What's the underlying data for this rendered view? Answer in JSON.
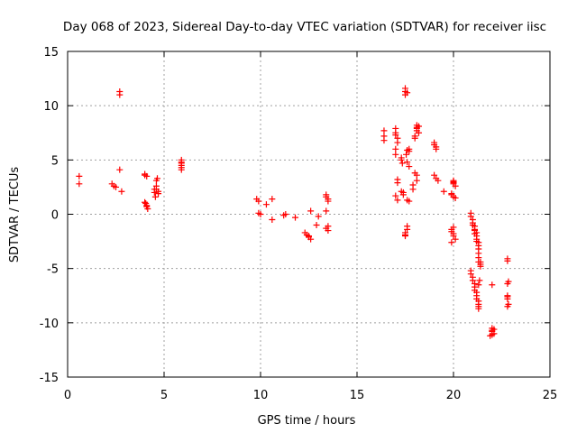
{
  "chart_data": {
    "type": "scatter",
    "title": "Day 068 of 2023, Sidereal Day-to-day VTEC variation (SDTVAR) for receiver iisc",
    "xlabel": "GPS time / hours",
    "ylabel": "SDTVAR / TECUs",
    "xlim": [
      0,
      25
    ],
    "ylim": [
      -15,
      15
    ],
    "x_ticks": [
      "0",
      "5",
      "10",
      "15",
      "20",
      "25"
    ],
    "y_ticks": [
      "-15",
      "-10",
      "-5",
      "0",
      "5",
      "10",
      "15"
    ],
    "x_tick_values": [
      0,
      5,
      10,
      15,
      20,
      25
    ],
    "y_tick_values": [
      -15,
      -10,
      -5,
      0,
      5,
      10,
      15
    ],
    "grid": true,
    "marker": "+",
    "colors": {
      "points": "#ff0000",
      "grid": "#a0a0a0",
      "axes": "#000000"
    },
    "series": [
      {
        "name": "SDTVAR",
        "x": [
          0.6,
          0.6,
          2.3,
          2.4,
          2.5,
          2.7,
          2.7,
          2.7,
          2.8,
          4.0,
          4.0,
          4.1,
          4.0,
          4.05,
          4.1,
          4.1,
          4.15,
          4.5,
          4.5,
          4.55,
          4.6,
          4.6,
          4.65,
          4.6,
          4.7,
          4.7,
          5.9,
          5.9,
          5.9,
          5.9,
          5.9,
          5.9,
          9.8,
          9.9,
          9.9,
          10.0,
          10.3,
          10.6,
          10.6,
          11.2,
          11.3,
          11.8,
          12.3,
          12.4,
          12.5,
          12.6,
          12.5,
          12.6,
          12.9,
          13.0,
          13.4,
          13.4,
          13.5,
          13.5,
          13.4,
          13.5,
          13.4,
          13.5,
          16.4,
          16.4,
          16.4,
          17.0,
          17.0,
          17.0,
          17.1,
          17.1,
          17.0,
          17.0,
          17.1,
          17.1,
          17.0,
          17.1,
          17.3,
          17.3,
          17.35,
          17.3,
          17.4,
          17.4,
          17.5,
          17.5,
          17.5,
          17.6,
          17.6,
          17.55,
          17.6,
          17.7,
          17.7,
          17.7,
          17.6,
          17.7,
          17.6,
          17.6,
          17.5,
          17.5,
          17.5,
          18.0,
          18.0,
          18.1,
          18.1,
          18.1,
          18.1,
          18.2,
          18.2,
          18.0,
          17.9,
          17.9,
          18.1,
          18.1,
          19.0,
          19.0,
          19.1,
          19.1,
          19.0,
          19.1,
          19.2,
          19.5,
          20.0,
          20.0,
          20.1,
          19.9,
          20.0,
          19.9,
          19.9,
          20.0,
          20.0,
          20.1,
          19.9,
          19.9,
          20.0,
          20.0,
          20.1,
          20.0,
          20.9,
          20.9,
          21.0,
          21.0,
          21.1,
          21.1,
          21.2,
          21.2,
          21.2,
          21.3,
          21.3,
          21.3,
          21.3,
          21.3,
          21.3,
          20.9,
          20.9,
          21.0,
          21.0,
          21.1,
          21.1,
          21.1,
          21.2,
          21.2,
          21.2,
          21.3,
          21.3,
          21.3,
          21.3,
          21.4,
          21.4,
          21.4,
          21.35,
          21.3,
          21.0,
          21.1,
          21.2,
          21.1,
          22.0,
          22.0,
          22.1,
          21.9,
          22.0,
          22.0,
          22.1,
          22.0,
          22.8,
          22.8,
          22.85,
          22.8,
          22.8,
          22.8,
          22.85,
          22.8,
          22.8
        ],
        "y": [
          3.5,
          2.8,
          2.8,
          2.6,
          2.5,
          11.3,
          11.0,
          4.1,
          2.1,
          3.7,
          3.6,
          3.5,
          1.1,
          1.0,
          0.8,
          0.7,
          0.5,
          2.3,
          2.0,
          1.6,
          2.3,
          2.6,
          3.3,
          3.1,
          2.1,
          1.9,
          5.0,
          4.7,
          4.5,
          4.3,
          4.1,
          4.8,
          1.4,
          1.2,
          0.1,
          0.0,
          0.9,
          1.4,
          -0.5,
          -0.1,
          0.0,
          -0.3,
          -1.7,
          -1.9,
          -2.1,
          -2.3,
          -2.0,
          0.3,
          -1.0,
          -0.2,
          1.8,
          1.6,
          1.4,
          1.2,
          0.3,
          -1.1,
          -1.3,
          -1.5,
          7.7,
          7.2,
          6.8,
          7.9,
          7.5,
          7.3,
          7.0,
          6.6,
          6.0,
          5.5,
          3.2,
          2.9,
          1.7,
          1.3,
          5.2,
          5.0,
          4.7,
          2.1,
          2.0,
          1.8,
          11.6,
          11.3,
          11.0,
          11.2,
          5.9,
          5.5,
          4.8,
          4.4,
          6.0,
          5.8,
          1.3,
          1.2,
          -1.1,
          -1.4,
          -1.7,
          -1.9,
          -2.0,
          7.2,
          7.0,
          7.7,
          8.0,
          8.2,
          7.9,
          8.1,
          7.5,
          3.8,
          2.7,
          2.3,
          3.1,
          3.6,
          6.6,
          6.4,
          6.2,
          6.0,
          3.6,
          3.3,
          3.1,
          2.1,
          3.0,
          2.8,
          2.6,
          1.9,
          1.6,
          -1.4,
          -1.6,
          -1.8,
          -2.0,
          -2.3,
          -2.6,
          1.8,
          2.9,
          3.1,
          1.5,
          -1.2,
          0.1,
          -0.2,
          -0.5,
          -0.8,
          -1.1,
          -1.4,
          -1.7,
          -2.0,
          -2.3,
          -2.6,
          -2.9,
          -3.2,
          -3.6,
          -4.0,
          -4.4,
          -5.2,
          -5.5,
          -5.8,
          -6.1,
          -6.4,
          -6.7,
          -7.0,
          -7.2,
          -7.5,
          -7.8,
          -8.0,
          -8.3,
          -8.5,
          -8.7,
          -4.4,
          -4.6,
          -4.8,
          -6.1,
          -6.5,
          -1.0,
          -1.5,
          -2.5,
          -1.8,
          -10.5,
          -10.8,
          -11.0,
          -11.2,
          -10.7,
          -11.1,
          -10.6,
          -6.5,
          -4.1,
          -4.3,
          -6.2,
          -6.4,
          -7.5,
          -7.8,
          -8.3,
          -8.5,
          -7.6
        ]
      }
    ]
  }
}
